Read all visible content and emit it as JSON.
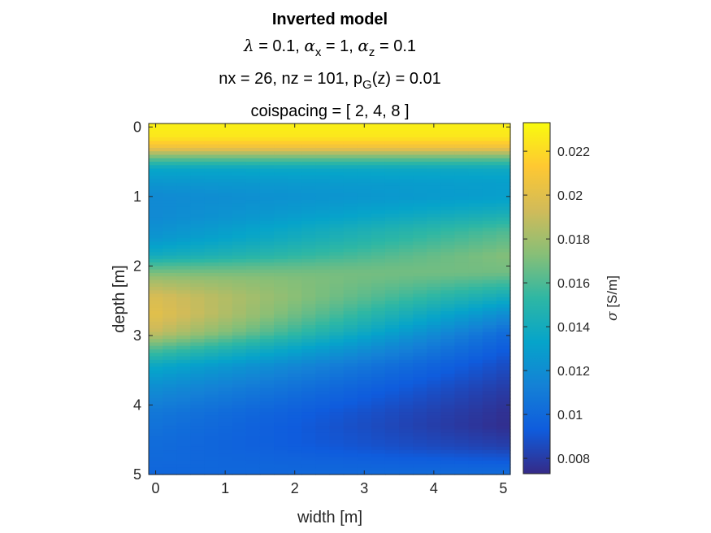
{
  "chart_data": {
    "type": "heatmap",
    "title": "Inverted model",
    "subtitle_lines": [
      {
        "parts": [
          {
            "t": "λ",
            "greek": true
          },
          {
            "t": " = 0.1, "
          },
          {
            "t": "α",
            "greek": true
          },
          {
            "t": "x",
            "sub": true
          },
          {
            "t": " = 1, "
          },
          {
            "t": "α",
            "greek": true
          },
          {
            "t": "z",
            "sub": true
          },
          {
            "t": " = 0.1"
          }
        ]
      },
      {
        "parts": [
          {
            "t": "nx = 26, nz = 101, p"
          },
          {
            "t": "G",
            "sub": true
          },
          {
            "t": "(z) = 0.01"
          }
        ]
      },
      {
        "parts": [
          {
            "t": "coispacing = [ 2, 4, 8 ]"
          }
        ]
      }
    ],
    "xlabel": "width [m]",
    "ylabel": "depth [m]",
    "x_ticks": [
      "0",
      "1",
      "2",
      "3",
      "4",
      "5"
    ],
    "y_ticks": [
      "0",
      "1",
      "2",
      "3",
      "4",
      "5"
    ],
    "xlim": [
      -0.1,
      5.1
    ],
    "ylim": [
      -0.05,
      5.0
    ],
    "y_reversed": true,
    "nx": 26,
    "nz": 101,
    "colormap": "parula",
    "colorbar": {
      "label": "σ [S/m]",
      "label_parts": [
        {
          "t": "σ",
          "greek": true
        },
        {
          "t": " [S/m]"
        }
      ],
      "ticks": [
        "0.008",
        "0.01",
        "0.012",
        "0.014",
        "0.016",
        "0.018",
        "0.02",
        "0.022"
      ],
      "clim": [
        0.0073,
        0.0233
      ]
    },
    "depth_profile_left_x0": [
      [
        0.0,
        0.0228
      ],
      [
        0.15,
        0.0225
      ],
      [
        0.3,
        0.0205
      ],
      [
        0.45,
        0.0165
      ],
      [
        0.6,
        0.0135
      ],
      [
        0.8,
        0.0125
      ],
      [
        1.0,
        0.0118
      ],
      [
        1.3,
        0.0118
      ],
      [
        1.6,
        0.0125
      ],
      [
        1.85,
        0.014
      ],
      [
        2.0,
        0.016
      ],
      [
        2.2,
        0.018
      ],
      [
        2.45,
        0.0196
      ],
      [
        2.7,
        0.02
      ],
      [
        2.95,
        0.019
      ],
      [
        3.2,
        0.016
      ],
      [
        3.45,
        0.0135
      ],
      [
        3.75,
        0.012
      ],
      [
        4.1,
        0.0108
      ],
      [
        4.5,
        0.0102
      ],
      [
        4.8,
        0.01
      ],
      [
        5.0,
        0.0098
      ]
    ],
    "depth_profile_right_x5": [
      [
        0.0,
        0.0228
      ],
      [
        0.15,
        0.0225
      ],
      [
        0.3,
        0.0205
      ],
      [
        0.45,
        0.0165
      ],
      [
        0.6,
        0.0138
      ],
      [
        0.8,
        0.013
      ],
      [
        1.0,
        0.013
      ],
      [
        1.2,
        0.014
      ],
      [
        1.5,
        0.016
      ],
      [
        1.85,
        0.0172
      ],
      [
        2.1,
        0.0168
      ],
      [
        2.4,
        0.0145
      ],
      [
        2.7,
        0.012
      ],
      [
        3.0,
        0.01
      ],
      [
        3.4,
        0.0088
      ],
      [
        3.8,
        0.008
      ],
      [
        4.1,
        0.0076
      ],
      [
        4.3,
        0.0075
      ],
      [
        4.6,
        0.0082
      ],
      [
        4.85,
        0.0095
      ],
      [
        5.0,
        0.0102
      ]
    ],
    "colors": {
      "parula": [
        "#352a87",
        "#0f5cdd",
        "#1481d6",
        "#06a4ca",
        "#2eb7a4",
        "#87bf77",
        "#d1bb59",
        "#fec832",
        "#f9fb0e"
      ]
    }
  }
}
